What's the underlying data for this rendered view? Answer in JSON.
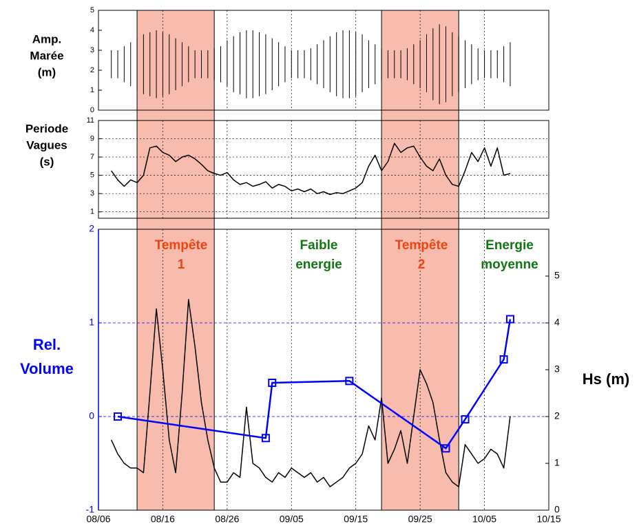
{
  "chart_data": [
    {
      "type": "range",
      "ylabel": [
        "Amp.",
        "Marée",
        "(m)"
      ],
      "xlim": [
        "08/06",
        "10/15"
      ],
      "xticks": [
        "08/06",
        "08/16",
        "08/26",
        "09/05",
        "09/15",
        "09/25",
        "10/05",
        "10/15"
      ],
      "ylim": [
        0,
        5
      ],
      "yticks": [
        0,
        1,
        2,
        3,
        4,
        5
      ],
      "color": "#000000",
      "x": [
        "08/08",
        "08/09",
        "08/10",
        "08/11",
        "08/12",
        "08/13",
        "08/14",
        "08/15",
        "08/16",
        "08/17",
        "08/18",
        "08/19",
        "08/20",
        "08/21",
        "08/22",
        "08/23",
        "08/24",
        "08/25",
        "08/26",
        "08/27",
        "08/28",
        "08/29",
        "08/30",
        "08/31",
        "09/01",
        "09/02",
        "09/03",
        "09/04",
        "09/05",
        "09/06",
        "09/07",
        "09/08",
        "09/09",
        "09/10",
        "09/11",
        "09/12",
        "09/13",
        "09/14",
        "09/15",
        "09/16",
        "09/17",
        "09/18",
        "09/19",
        "09/20",
        "09/21",
        "09/22",
        "09/23",
        "09/24",
        "09/25",
        "09/26",
        "09/27",
        "09/28",
        "09/29",
        "09/30",
        "10/01",
        "10/02",
        "10/03",
        "10/04",
        "10/05",
        "10/06",
        "10/07",
        "10/08",
        "10/09"
      ],
      "series": [
        {
          "values": [
            3.0,
            3.0,
            3.2,
            3.4,
            3.6,
            3.8,
            3.9,
            4.0,
            3.9,
            3.8,
            3.6,
            3.4,
            3.2,
            3.0,
            3.0,
            3.0,
            3.1,
            3.2,
            3.5,
            3.7,
            3.9,
            4.0,
            4.0,
            3.9,
            3.8,
            3.6,
            3.4,
            3.2,
            3.0,
            3.0,
            3.0,
            3.1,
            3.3,
            3.5,
            3.7,
            3.9,
            4.0,
            4.0,
            3.9,
            3.8,
            3.5,
            3.3,
            3.1,
            3.0,
            3.0,
            3.0,
            3.1,
            3.3,
            3.5,
            3.8,
            4.1,
            4.3,
            4.2,
            3.9,
            3.7,
            3.5,
            3.3,
            3.1,
            3.0,
            3.0,
            3.0,
            3.2,
            3.4
          ]
        },
        {
          "values": [
            1.6,
            1.6,
            1.4,
            1.2,
            1.0,
            0.8,
            0.7,
            0.6,
            0.7,
            0.8,
            1.0,
            1.2,
            1.4,
            1.6,
            1.6,
            1.6,
            1.5,
            1.4,
            1.2,
            0.9,
            0.8,
            0.6,
            0.6,
            0.7,
            0.8,
            1.0,
            1.2,
            1.4,
            1.6,
            1.6,
            1.6,
            1.5,
            1.3,
            1.1,
            0.9,
            0.7,
            0.6,
            0.6,
            0.7,
            0.9,
            1.1,
            1.3,
            1.5,
            1.6,
            1.6,
            1.6,
            1.5,
            1.3,
            1.1,
            0.9,
            0.5,
            0.3,
            0.4,
            0.7,
            0.9,
            1.1,
            1.3,
            1.5,
            1.6,
            1.6,
            1.6,
            1.4,
            1.2
          ]
        }
      ]
    },
    {
      "type": "line",
      "ylabel": [
        "Periode",
        "Vagues",
        "(s)"
      ],
      "xlim": [
        "08/06",
        "10/15"
      ],
      "xticks": [
        "08/06",
        "08/16",
        "08/26",
        "09/05",
        "09/15",
        "09/25",
        "10/05",
        "10/15"
      ],
      "ylim": [
        0.3,
        11
      ],
      "yticks": [
        1,
        3,
        5,
        7,
        9,
        11
      ],
      "grid": true,
      "x": [
        "08/08",
        "08/09",
        "08/10",
        "08/11",
        "08/12",
        "08/13",
        "08/14",
        "08/15",
        "08/16",
        "08/17",
        "08/18",
        "08/19",
        "08/20",
        "08/21",
        "08/22",
        "08/23",
        "08/24",
        "08/25",
        "08/26",
        "08/27",
        "08/28",
        "08/29",
        "08/30",
        "08/31",
        "09/01",
        "09/02",
        "09/03",
        "09/04",
        "09/05",
        "09/06",
        "09/07",
        "09/08",
        "09/09",
        "09/10",
        "09/11",
        "09/12",
        "09/13",
        "09/14",
        "09/15",
        "09/16",
        "09/17",
        "09/18",
        "09/19",
        "09/20",
        "09/21",
        "09/22",
        "09/23",
        "09/24",
        "09/25",
        "09/26",
        "09/27",
        "09/28",
        "09/29",
        "09/30",
        "10/01",
        "10/02",
        "10/03",
        "10/04",
        "10/05",
        "10/06",
        "10/07",
        "10/08",
        "10/09"
      ],
      "series": [
        {
          "color": "#000000",
          "values": [
            5.5,
            4.5,
            3.8,
            4.5,
            4.2,
            5.0,
            8.0,
            8.2,
            7.5,
            7.2,
            6.5,
            7.0,
            7.2,
            6.8,
            6.2,
            5.5,
            5.2,
            5.0,
            5.3,
            4.5,
            4.0,
            4.2,
            3.8,
            4.0,
            4.3,
            3.6,
            4.0,
            3.8,
            3.3,
            3.5,
            3.2,
            3.5,
            3.0,
            3.2,
            2.9,
            3.1,
            3.0,
            3.3,
            3.6,
            4.2,
            6.0,
            7.2,
            5.5,
            6.5,
            8.5,
            7.5,
            8.0,
            8.2,
            7.0,
            6.0,
            5.5,
            6.8,
            5.0,
            4.0,
            3.8,
            5.5,
            7.5,
            6.5,
            8.0,
            6.0,
            8.0,
            5.0,
            5.2
          ]
        }
      ]
    },
    {
      "type": "line",
      "ylabel": [
        "Rel.",
        "Volume"
      ],
      "y2label": "Hs (m)",
      "yaxis_color": "#0000ff",
      "xlim": [
        "08/06",
        "10/15"
      ],
      "xticks": [
        "08/06",
        "08/16",
        "08/26",
        "09/05",
        "09/15",
        "09/25",
        "10/05",
        "10/15"
      ],
      "ylim": [
        -1,
        2
      ],
      "yticks": [
        -1,
        0,
        1,
        2
      ],
      "y2lim": [
        0,
        6
      ],
      "y2ticks": [
        0,
        1,
        2,
        3,
        4,
        5
      ],
      "grid": true,
      "highlight_periods": [
        {
          "start": "08/12",
          "end": "08/24",
          "color": "#f7bcae"
        },
        {
          "start": "09/19",
          "end": "10/01",
          "color": "#f7bcae"
        }
      ],
      "annotations": [
        {
          "lines": [
            "Tempête",
            "1"
          ],
          "color": "#ee4411"
        },
        {
          "lines": [
            "Faible",
            "energie"
          ],
          "color": "#117711"
        },
        {
          "lines": [
            "Tempête",
            "2"
          ],
          "color": "#ee4411"
        },
        {
          "lines": [
            "Energie",
            "moyenne"
          ],
          "color": "#117711"
        }
      ],
      "series": [
        {
          "axis": "y2",
          "color": "#000000",
          "x": [
            "08/08",
            "08/09",
            "08/10",
            "08/11",
            "08/12",
            "08/13",
            "08/14",
            "08/15",
            "08/16",
            "08/17",
            "08/18",
            "08/19",
            "08/20",
            "08/21",
            "08/22",
            "08/23",
            "08/24",
            "08/25",
            "08/26",
            "08/27",
            "08/28",
            "08/29",
            "08/30",
            "08/31",
            "09/01",
            "09/02",
            "09/03",
            "09/04",
            "09/05",
            "09/06",
            "09/07",
            "09/08",
            "09/09",
            "09/10",
            "09/11",
            "09/12",
            "09/13",
            "09/14",
            "09/15",
            "09/16",
            "09/17",
            "09/18",
            "09/19",
            "09/20",
            "09/21",
            "09/22",
            "09/23",
            "09/24",
            "09/25",
            "09/26",
            "09/27",
            "09/28",
            "09/29",
            "09/30",
            "10/01",
            "10/02",
            "10/03",
            "10/04",
            "10/05",
            "10/06",
            "10/07",
            "10/08",
            "10/09"
          ],
          "values": [
            1.5,
            1.2,
            1.0,
            0.9,
            0.9,
            0.8,
            2.5,
            4.3,
            3.0,
            1.5,
            0.8,
            2.5,
            4.5,
            3.5,
            2.3,
            1.5,
            0.9,
            0.6,
            0.6,
            0.8,
            0.7,
            2.2,
            1.0,
            0.9,
            0.7,
            0.6,
            0.8,
            0.7,
            0.9,
            0.8,
            0.7,
            0.8,
            0.6,
            0.7,
            0.5,
            0.6,
            0.7,
            0.9,
            1.0,
            1.2,
            1.8,
            1.5,
            2.4,
            1.0,
            1.3,
            1.7,
            1.0,
            2.0,
            3.0,
            2.7,
            2.3,
            1.5,
            0.8,
            0.6,
            0.5,
            1.4,
            1.2,
            1.0,
            1.1,
            1.3,
            1.2,
            0.9,
            2.0
          ]
        },
        {
          "color": "#0000ff",
          "marker": "square",
          "x": [
            "08/09",
            "09/01",
            "09/02",
            "09/14",
            "09/29",
            "10/02",
            "10/08",
            "10/09"
          ],
          "values": [
            0,
            -0.23,
            0.36,
            0.38,
            -0.34,
            -0.03,
            0.61,
            1.04
          ]
        }
      ]
    }
  ]
}
